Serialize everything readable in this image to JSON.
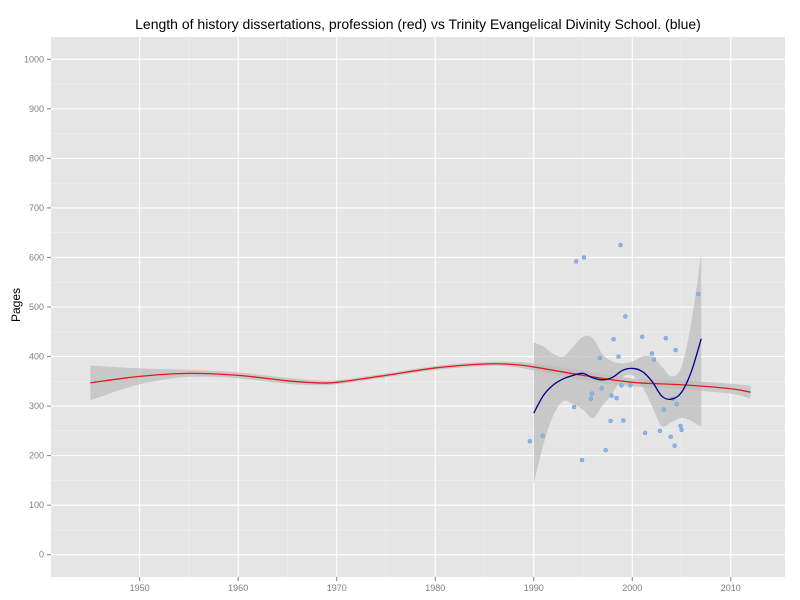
{
  "chart_data": {
    "type": "scatter",
    "title": "Length of history dissertations, profession (red) vs Trinity Evangelical Divinity School. (blue)",
    "xlabel": "",
    "ylabel": "Pages",
    "xlim": [
      1941,
      2015.5
    ],
    "ylim": [
      -45,
      1045
    ],
    "x_ticks": [
      1950,
      1960,
      1970,
      1980,
      1990,
      2000,
      2010
    ],
    "y_ticks": [
      0,
      100,
      200,
      300,
      400,
      500,
      600,
      700,
      800,
      900,
      1000
    ],
    "grid": true,
    "legend": "none",
    "colors": {
      "panel_background": "#e5e5e5",
      "grid_major": "#ffffff",
      "grid_minor": "#f2f2f2",
      "confidence_band": "#bdbdbd",
      "profession_line": "#e41a1c",
      "trinity_line": "#00008b",
      "trinity_points": "#8db3ea"
    },
    "series": [
      {
        "kind": "points",
        "color": "blue",
        "x": [
          1989.6,
          1990.9,
          1994.1,
          1994.3,
          1994.9,
          1995.1,
          1995.8,
          1995.9,
          1996.7,
          1996.9,
          1997.3,
          1997.8,
          1997.9,
          1998.1,
          1998.4,
          1998.6,
          1998.8,
          1998.9,
          1999.1,
          1999.3,
          1999.8,
          2001.0,
          2001.3,
          2002.0,
          2002.2,
          2002.8,
          2003.2,
          2003.4,
          2003.9,
          2004.1,
          2004.3,
          2004.4,
          2004.5,
          2004.9,
          2005.0,
          2006.7
        ],
        "y": [
          229,
          240,
          298,
          592,
          191,
          600,
          315,
          325,
          397,
          336,
          211,
          270,
          321,
          435,
          316,
          400,
          625,
          342,
          271,
          481,
          342,
          440,
          246,
          406,
          394,
          250,
          293,
          437,
          238,
          315,
          220,
          413,
          304,
          260,
          252,
          526
        ]
      },
      {
        "kind": "smooth",
        "color": "red",
        "x": [
          1945,
          1950,
          1955,
          1960,
          1965,
          1968,
          1970,
          1975,
          1980,
          1985,
          1988,
          1990,
          1995,
          2000,
          2005,
          2010,
          2012
        ],
        "y": [
          347,
          360,
          366,
          362,
          351,
          347,
          348,
          362,
          377,
          385,
          384,
          379,
          362,
          348,
          343,
          335,
          328
        ],
        "band_upper": [
          382,
          376,
          373,
          368,
          357,
          352,
          352,
          366,
          381,
          389,
          389,
          386,
          372,
          356,
          352,
          345,
          341
        ],
        "band_lower": [
          312,
          344,
          359,
          356,
          345,
          342,
          344,
          358,
          373,
          381,
          379,
          372,
          352,
          340,
          334,
          325,
          315
        ]
      },
      {
        "kind": "smooth",
        "color": "blue",
        "x": [
          1990,
          1991,
          1992,
          1993,
          1994,
          1995,
          1996,
          1997,
          1998,
          1999,
          2000,
          2001,
          2002,
          2003,
          2004,
          2005,
          2006,
          2007
        ],
        "y": [
          286,
          322,
          343,
          355,
          362,
          366,
          357,
          353,
          358,
          372,
          376,
          370,
          350,
          320,
          314,
          328,
          370,
          436
        ],
        "band_upper": [
          428,
          420,
          405,
          400,
          420,
          440,
          437,
          404,
          390,
          386,
          390,
          400,
          400,
          380,
          360,
          380,
          470,
          608
        ],
        "band_lower": [
          143,
          224,
          282,
          310,
          304,
          293,
          276,
          302,
          326,
          358,
          362,
          340,
          300,
          260,
          268,
          276,
          270,
          258
        ]
      }
    ]
  }
}
